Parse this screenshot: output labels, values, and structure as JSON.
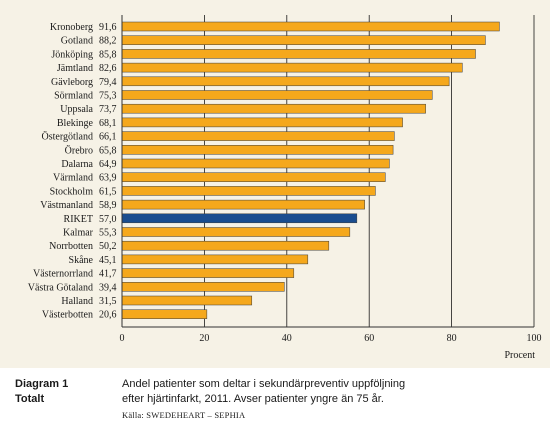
{
  "chart_data": {
    "type": "bar",
    "orientation": "horizontal",
    "categories": [
      "Kronoberg",
      "Gotland",
      "Jönköping",
      "Jämtland",
      "Gävleborg",
      "Sörmland",
      "Uppsala",
      "Blekinge",
      "Östergötland",
      "Örebro",
      "Dalarna",
      "Värmland",
      "Stockholm",
      "Västmanland",
      "RIKET",
      "Kalmar",
      "Norrbotten",
      "Skåne",
      "Västernorrland",
      "Västra Götaland",
      "Halland",
      "Västerbotten"
    ],
    "value_labels": [
      "91,6",
      "88,2",
      "85,8",
      "82,6",
      "79,4",
      "75,3",
      "73,7",
      "68,1",
      "66,1",
      "65,8",
      "64,9",
      "63,9",
      "61,5",
      "58,9",
      "57,0",
      "55,3",
      "50,2",
      "45,1",
      "41,7",
      "39,4",
      "31,5",
      "20,6"
    ],
    "values": [
      91.6,
      88.2,
      85.8,
      82.6,
      79.4,
      75.3,
      73.7,
      68.1,
      66.1,
      65.8,
      64.9,
      63.9,
      61.5,
      58.9,
      57.0,
      55.3,
      50.2,
      45.1,
      41.7,
      39.4,
      31.5,
      20.6
    ],
    "highlight_category": "RIKET",
    "xlim": [
      0,
      100
    ],
    "xticks": [
      0,
      20,
      40,
      60,
      80,
      100
    ],
    "xlabel": "Procent",
    "ylabel": "",
    "grid": "vertical",
    "colors": {
      "bar": "#f5a81c",
      "highlight": "#1a4d8f",
      "background": "#f6f2e6",
      "gridline": "#1a1a1a",
      "border": "#333333"
    }
  },
  "caption": {
    "diagram_label": "Diagram 1",
    "diagram_sublabel": "Totalt",
    "text_line1": "Andel patienter som deltar i sekundärpreventiv uppföljning",
    "text_line2": "efter hjärtinfarkt, 2011. Avser patienter yngre än 75 år.",
    "source": "Källa: SWEDEHEART – SEPHIA"
  }
}
